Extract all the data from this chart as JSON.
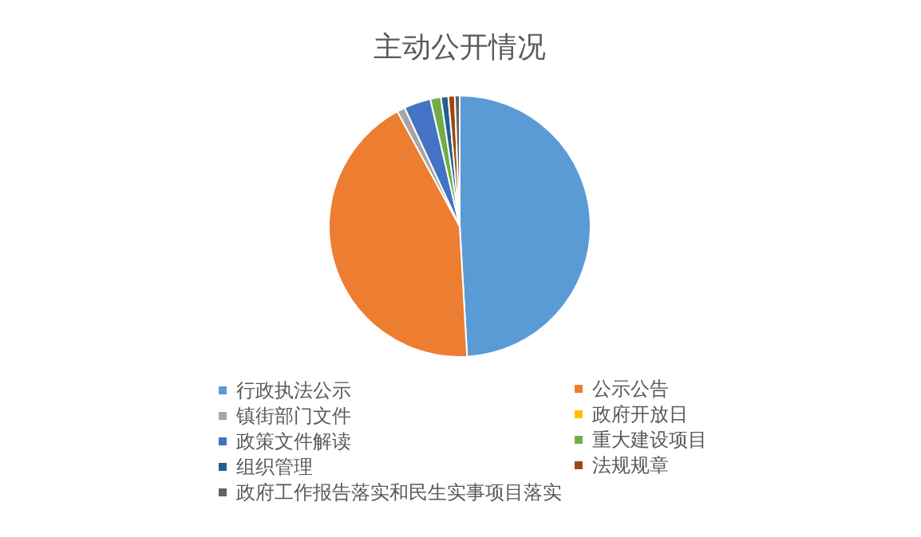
{
  "chart_data": {
    "type": "pie",
    "title": "主动公开情况",
    "categories": [
      "行政执法公示",
      "公示公告",
      "镇街部门文件",
      "政府开放日",
      "政策文件解读",
      "重大建设项目",
      "组织管理",
      "法规规章",
      "政府工作报告落实和民生实事项目落实"
    ],
    "values": [
      49.0,
      42.9,
      1.0,
      null,
      3.3,
      1.3,
      0.9,
      0.8,
      0.6
    ],
    "colors": [
      "#5b9bd5",
      "#ed7d31",
      "#a5a5a5",
      "#ffc000",
      "#4472c4",
      "#70ad47",
      "#255e91",
      "#9e480e",
      "#636363"
    ],
    "legend": "bottom"
  }
}
